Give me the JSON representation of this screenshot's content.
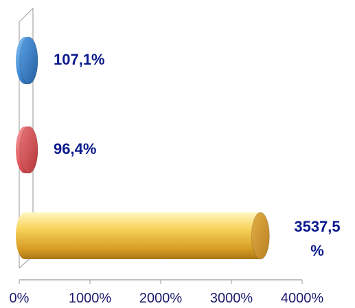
{
  "chart_data": {
    "type": "bar",
    "orientation": "horizontal",
    "style": "3d-cylinder",
    "categories": [
      "",
      "",
      ""
    ],
    "values": [
      3537.5,
      96.4,
      107.1
    ],
    "data_labels": [
      "3537,5\n%",
      "96,4%",
      "107,1%"
    ],
    "colors": [
      "#e6b83c",
      "#e36c6f",
      "#4a90d9"
    ],
    "xlim": [
      0,
      4000
    ],
    "x_ticks": [
      0,
      1000,
      2000,
      3000,
      4000
    ],
    "x_tick_labels": [
      "0%",
      "1000%",
      "2000%",
      "3000%",
      "4000%"
    ],
    "grid": false,
    "title": "",
    "xlabel": "",
    "ylabel": ""
  }
}
